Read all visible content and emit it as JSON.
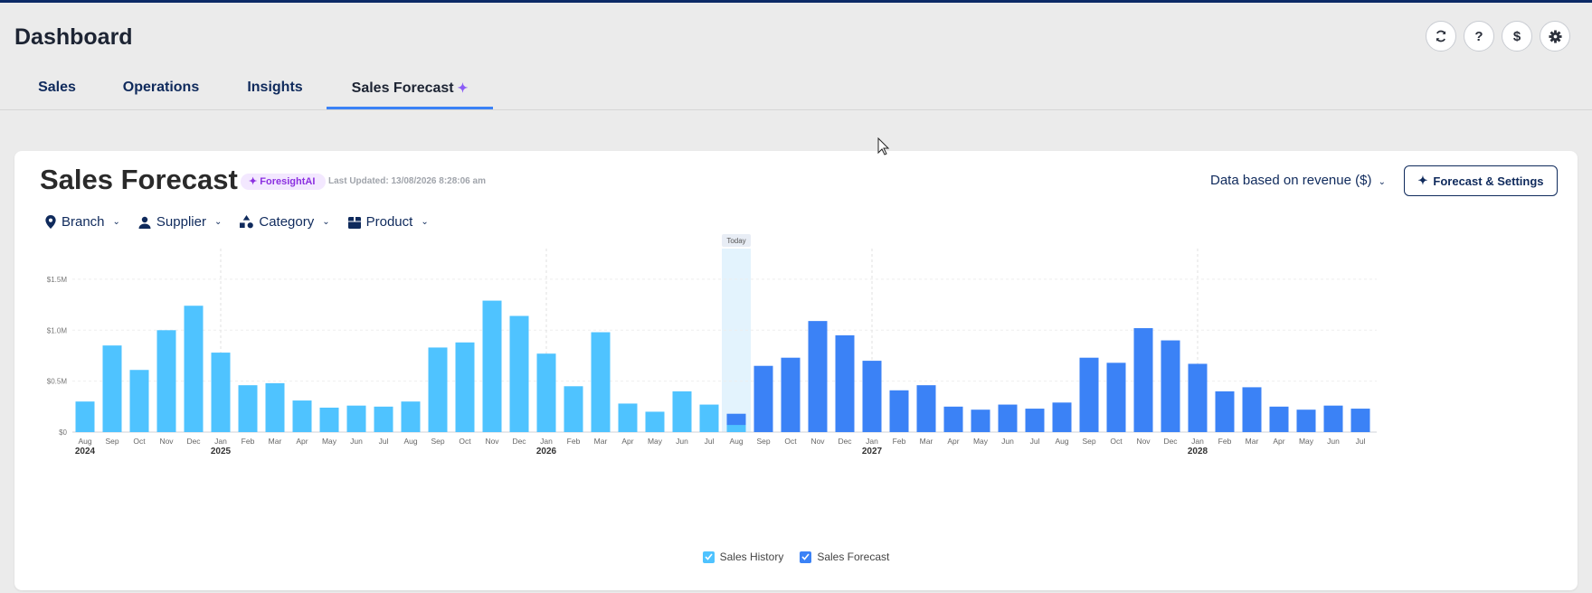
{
  "app": {
    "title": "Dashboard"
  },
  "toolbar": {
    "icons": [
      "refresh-icon",
      "help-icon",
      "dollar-icon",
      "settings-icon"
    ],
    "help_glyph": "?",
    "dollar_glyph": "$"
  },
  "tabs": [
    {
      "label": "Sales"
    },
    {
      "label": "Operations"
    },
    {
      "label": "Insights"
    },
    {
      "label": "Sales Forecast",
      "active": true
    }
  ],
  "card": {
    "title": "Sales Forecast",
    "badge": "ForesightAI",
    "last_updated": "Last Updated: 13/08/2026 8:28:06 am",
    "data_basis": "Data based on revenue ($)",
    "forecast_button": "Forecast & Settings"
  },
  "filters": [
    {
      "label": "Branch",
      "icon": "location-pin-icon"
    },
    {
      "label": "Supplier",
      "icon": "person-icon"
    },
    {
      "label": "Category",
      "icon": "shapes-icon"
    },
    {
      "label": "Product",
      "icon": "box-icon"
    }
  ],
  "colors": {
    "history": "#4fc3ff",
    "forecast": "#3b82f6",
    "today_band": "#e3f3fd",
    "accent": "#8b5cf6"
  },
  "chart_data": {
    "type": "bar",
    "today_label": "Today",
    "today_index": 24,
    "y_ticks": [
      "$0",
      "$0.5M",
      "$1.0M",
      "$1.5M"
    ],
    "y_tick_values": [
      0,
      0.5,
      1.0,
      1.5
    ],
    "ylim": [
      0,
      1.65
    ],
    "grid": true,
    "legend_position": "bottom",
    "categories": [
      "Aug",
      "Sep",
      "Oct",
      "Nov",
      "Dec",
      "Jan",
      "Feb",
      "Mar",
      "Apr",
      "May",
      "Jun",
      "Jul",
      "Aug",
      "Sep",
      "Oct",
      "Nov",
      "Dec",
      "Jan",
      "Feb",
      "Mar",
      "Apr",
      "May",
      "Jun",
      "Jul",
      "Aug",
      "Sep",
      "Oct",
      "Nov",
      "Dec",
      "Jan",
      "Feb",
      "Mar",
      "Apr",
      "May",
      "Jun",
      "Jul",
      "Aug",
      "Sep",
      "Oct",
      "Nov",
      "Dec",
      "Jan",
      "Feb",
      "Mar",
      "Apr",
      "May",
      "Jun",
      "Jul"
    ],
    "year_labels": [
      {
        "index": 0,
        "label": "2024"
      },
      {
        "index": 5,
        "label": "2025"
      },
      {
        "index": 17,
        "label": "2026"
      },
      {
        "index": 29,
        "label": "2027"
      },
      {
        "index": 41,
        "label": "2028"
      }
    ],
    "series": [
      {
        "name": "Sales History",
        "values": [
          0.3,
          0.85,
          0.61,
          1.0,
          1.24,
          0.78,
          0.46,
          0.48,
          0.31,
          0.24,
          0.26,
          0.25,
          0.3,
          0.83,
          0.88,
          1.29,
          1.14,
          0.77,
          0.45,
          0.98,
          0.28,
          0.2,
          0.4,
          0.27,
          0.07,
          null,
          null,
          null,
          null,
          null,
          null,
          null,
          null,
          null,
          null,
          null,
          null,
          null,
          null,
          null,
          null,
          null,
          null,
          null,
          null,
          null,
          null,
          null
        ]
      },
      {
        "name": "Sales Forecast",
        "values": [
          null,
          null,
          null,
          null,
          null,
          null,
          null,
          null,
          null,
          null,
          null,
          null,
          null,
          null,
          null,
          null,
          null,
          null,
          null,
          null,
          null,
          null,
          null,
          null,
          0.18,
          0.65,
          0.73,
          1.09,
          0.95,
          0.7,
          0.41,
          0.46,
          0.25,
          0.22,
          0.27,
          0.23,
          0.29,
          0.73,
          0.68,
          1.02,
          0.9,
          0.67,
          0.4,
          0.44,
          0.25,
          0.22,
          0.26,
          0.23
        ]
      }
    ]
  }
}
